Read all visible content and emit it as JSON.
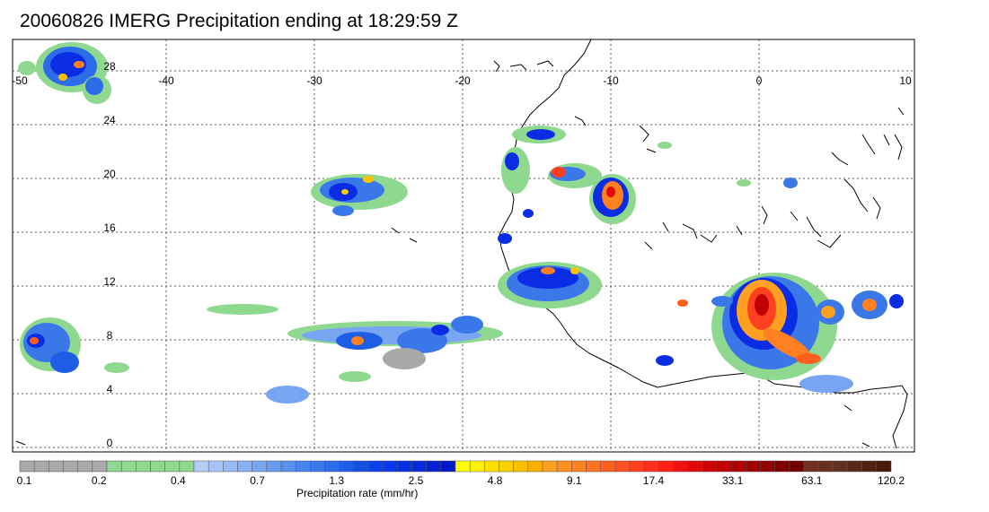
{
  "title": "20060826 IMERG Precipitation ending at 18:29:59 Z",
  "map": {
    "lon_ticks": [
      "-50",
      "-40",
      "-30",
      "-20",
      "-10",
      "0",
      "10"
    ],
    "lat_ticks": [
      "28",
      "24",
      "20",
      "16",
      "12",
      "8",
      "4",
      "0"
    ],
    "lon_range": [
      -50,
      10
    ],
    "lat_range": [
      -0.5,
      30
    ],
    "grid": true
  },
  "colorbar": {
    "label": "Precipitation rate (mm/hr)",
    "tick_labels": [
      "0.1",
      "0.2",
      "0.4",
      "0.7",
      "1.3",
      "2.5",
      "4.8",
      "9.1",
      "17.4",
      "33.1",
      "63.1",
      "120.2"
    ],
    "colors": [
      "#a8a8a8",
      "#a8a8a8",
      "#a8a8a8",
      "#a8a8a8",
      "#a8a8a8",
      "#a8a8a8",
      "#8fd88f",
      "#8fd88f",
      "#8fd88f",
      "#8fd88f",
      "#8fd88f",
      "#8fd88f",
      "#b8ccf8",
      "#a8c4f8",
      "#98baf6",
      "#88b0f4",
      "#78a6f2",
      "#689cf0",
      "#5890ee",
      "#4884ec",
      "#3a78ea",
      "#2c6ce8",
      "#1e5ee4",
      "#1450e0",
      "#0a40f0",
      "#0838ec",
      "#0630e4",
      "#0428dc",
      "#0220d4",
      "#0018cc",
      "#ffff00",
      "#fff000",
      "#ffe000",
      "#ffd000",
      "#ffc000",
      "#ffb000",
      "#ffa020",
      "#ff9020",
      "#ff8020",
      "#ff7020",
      "#ff6020",
      "#ff5020",
      "#ff4020",
      "#ff3020",
      "#ff2010",
      "#f01010",
      "#e00808",
      "#d00000",
      "#c00000",
      "#b00000",
      "#a00000",
      "#900000",
      "#800000",
      "#700000",
      "#703020",
      "#683020",
      "#603020",
      "#582818",
      "#502010",
      "#481808"
    ]
  }
}
